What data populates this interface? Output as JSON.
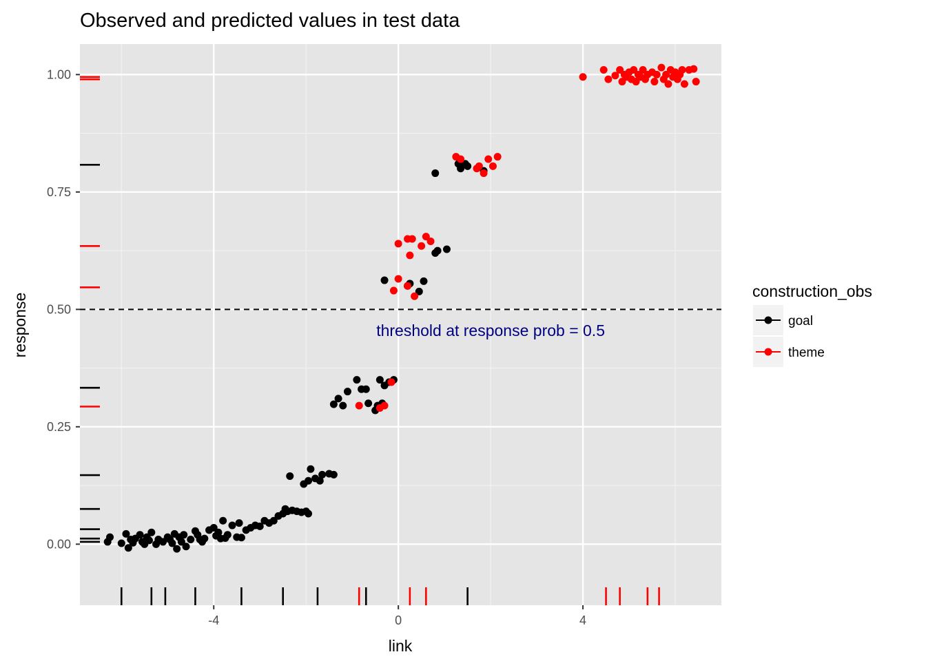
{
  "chart_data": {
    "type": "scatter",
    "title": "Observed and predicted values in test data",
    "xlabel": "link",
    "ylabel": "response",
    "xlim": [
      -6.9,
      7.0
    ],
    "ylim": [
      -0.13,
      1.065
    ],
    "x_ticks": [
      -4,
      0,
      4
    ],
    "x_tick_labels": [
      "-4",
      "0",
      "4"
    ],
    "y_ticks": [
      0,
      0.25,
      0.5,
      0.75,
      1
    ],
    "y_tick_labels": [
      "0.00",
      "0.25",
      "0.50",
      "0.75",
      "1.00"
    ],
    "grid": true,
    "panel_background": "#e5e5e5",
    "threshold": {
      "y": 0.5,
      "style": "dashed",
      "color": "#000000"
    },
    "annotation": {
      "text": "threshold at response prob = 0.5",
      "x": 2.0,
      "y": 0.455,
      "color": "#000080"
    },
    "legend": {
      "title": "construction_obs",
      "position": "right",
      "entries": [
        {
          "label": "goal",
          "color": "#000000"
        },
        {
          "label": "theme",
          "color": "#ff0000"
        }
      ]
    },
    "series": [
      {
        "name": "goal",
        "color": "#000000",
        "points": [
          [
            -6.3,
            0.005
          ],
          [
            -6.25,
            0.015
          ],
          [
            -6.0,
            0.002
          ],
          [
            -5.9,
            0.022
          ],
          [
            -5.85,
            -0.008
          ],
          [
            -5.8,
            0.01
          ],
          [
            -5.75,
            0.003
          ],
          [
            -5.7,
            0.012
          ],
          [
            -5.6,
            0.02
          ],
          [
            -5.55,
            0.005
          ],
          [
            -5.5,
            0.0
          ],
          [
            -5.45,
            0.015
          ],
          [
            -5.4,
            0.008
          ],
          [
            -5.35,
            0.025
          ],
          [
            -5.25,
            0.0
          ],
          [
            -5.2,
            0.01
          ],
          [
            -5.1,
            0.005
          ],
          [
            -5.0,
            0.015
          ],
          [
            -4.95,
            0.01
          ],
          [
            -4.9,
            0.002
          ],
          [
            -4.85,
            0.022
          ],
          [
            -4.8,
            -0.01
          ],
          [
            -4.75,
            0.015
          ],
          [
            -4.7,
            0.005
          ],
          [
            -4.65,
            0.02
          ],
          [
            -4.6,
            -0.005
          ],
          [
            -4.5,
            0.01
          ],
          [
            -4.4,
            0.028
          ],
          [
            -4.35,
            0.02
          ],
          [
            -4.3,
            0.01
          ],
          [
            -4.25,
            0.005
          ],
          [
            -4.2,
            0.012
          ],
          [
            -4.1,
            0.03
          ],
          [
            -4.0,
            0.035
          ],
          [
            -3.95,
            0.018
          ],
          [
            -3.9,
            0.025
          ],
          [
            -3.85,
            0.012
          ],
          [
            -3.8,
            0.05
          ],
          [
            -3.75,
            0.013
          ],
          [
            -3.7,
            0.02
          ],
          [
            -3.6,
            0.04
          ],
          [
            -3.5,
            0.015
          ],
          [
            -3.45,
            0.045
          ],
          [
            -3.4,
            0.014
          ],
          [
            -3.3,
            0.03
          ],
          [
            -3.2,
            0.035
          ],
          [
            -3.1,
            0.04
          ],
          [
            -3.0,
            0.038
          ],
          [
            -2.9,
            0.05
          ],
          [
            -2.8,
            0.045
          ],
          [
            -2.7,
            0.05
          ],
          [
            -2.6,
            0.06
          ],
          [
            -2.5,
            0.065
          ],
          [
            -2.45,
            0.075
          ],
          [
            -2.4,
            0.07
          ],
          [
            -2.3,
            0.072
          ],
          [
            -2.35,
            0.145
          ],
          [
            -2.2,
            0.07
          ],
          [
            -2.1,
            0.068
          ],
          [
            -2.0,
            0.07
          ],
          [
            -1.95,
            0.065
          ],
          [
            -2.05,
            0.128
          ],
          [
            -1.95,
            0.135
          ],
          [
            -1.9,
            0.16
          ],
          [
            -1.8,
            0.14
          ],
          [
            -1.7,
            0.135
          ],
          [
            -1.65,
            0.148
          ],
          [
            -1.5,
            0.15
          ],
          [
            -1.4,
            0.148
          ],
          [
            -1.4,
            0.298
          ],
          [
            -1.3,
            0.31
          ],
          [
            -1.2,
            0.295
          ],
          [
            -1.1,
            0.325
          ],
          [
            -0.9,
            0.35
          ],
          [
            -0.8,
            0.33
          ],
          [
            -0.7,
            0.33
          ],
          [
            -0.65,
            0.3
          ],
          [
            -0.5,
            0.285
          ],
          [
            -0.45,
            0.295
          ],
          [
            -0.35,
            0.3
          ],
          [
            -0.3,
            0.338
          ],
          [
            -0.2,
            0.345
          ],
          [
            -0.1,
            0.35
          ],
          [
            -0.4,
            0.35
          ],
          [
            -0.3,
            0.562
          ],
          [
            0.2,
            0.55
          ],
          [
            0.25,
            0.555
          ],
          [
            0.45,
            0.538
          ],
          [
            0.55,
            0.56
          ],
          [
            0.8,
            0.62
          ],
          [
            0.85,
            0.625
          ],
          [
            1.05,
            0.628
          ],
          [
            0.8,
            0.79
          ],
          [
            1.3,
            0.81
          ],
          [
            1.35,
            0.8
          ],
          [
            1.45,
            0.81
          ],
          [
            1.5,
            0.805
          ],
          [
            1.85,
            0.795
          ]
        ]
      },
      {
        "name": "theme",
        "color": "#ff0000",
        "points": [
          [
            -0.85,
            0.295
          ],
          [
            -0.4,
            0.29
          ],
          [
            -0.3,
            0.295
          ],
          [
            -0.15,
            0.345
          ],
          [
            -0.1,
            0.54
          ],
          [
            0.0,
            0.565
          ],
          [
            0.2,
            0.55
          ],
          [
            0.35,
            0.528
          ],
          [
            0.0,
            0.64
          ],
          [
            0.2,
            0.65
          ],
          [
            0.3,
            0.65
          ],
          [
            0.25,
            0.615
          ],
          [
            0.5,
            0.635
          ],
          [
            0.6,
            0.655
          ],
          [
            0.7,
            0.645
          ],
          [
            1.25,
            0.825
          ],
          [
            1.35,
            0.82
          ],
          [
            1.7,
            0.8
          ],
          [
            1.75,
            0.805
          ],
          [
            1.85,
            0.79
          ],
          [
            1.95,
            0.82
          ],
          [
            2.05,
            0.805
          ],
          [
            2.15,
            0.825
          ],
          [
            4.0,
            0.995
          ],
          [
            4.45,
            1.01
          ],
          [
            4.55,
            0.99
          ],
          [
            4.7,
            0.998
          ],
          [
            4.8,
            1.01
          ],
          [
            4.85,
            0.985
          ],
          [
            4.9,
            1.0
          ],
          [
            4.95,
            0.995
          ],
          [
            5.0,
            1.005
          ],
          [
            5.05,
            0.99
          ],
          [
            5.1,
            1.01
          ],
          [
            5.15,
            0.985
          ],
          [
            5.2,
            1.0
          ],
          [
            5.25,
            0.995
          ],
          [
            5.3,
            1.01
          ],
          [
            5.35,
            0.99
          ],
          [
            5.4,
            1.0
          ],
          [
            5.5,
            1.005
          ],
          [
            5.55,
            0.985
          ],
          [
            5.6,
            1.0
          ],
          [
            5.7,
            1.015
          ],
          [
            5.75,
            0.99
          ],
          [
            5.8,
            1.0
          ],
          [
            5.85,
            0.98
          ],
          [
            5.9,
            1.01
          ],
          [
            5.95,
            0.995
          ],
          [
            6.0,
            1.005
          ],
          [
            6.05,
            0.99
          ],
          [
            6.1,
            1.0
          ],
          [
            6.15,
            1.01
          ],
          [
            6.2,
            0.98
          ],
          [
            6.3,
            1.01
          ],
          [
            6.4,
            1.012
          ],
          [
            6.45,
            0.985
          ]
        ]
      }
    ],
    "rug_x": [
      {
        "x": -6.0,
        "color": "#000000"
      },
      {
        "x": -5.35,
        "color": "#000000"
      },
      {
        "x": -5.05,
        "color": "#000000"
      },
      {
        "x": -4.4,
        "color": "#000000"
      },
      {
        "x": -3.4,
        "color": "#000000"
      },
      {
        "x": -2.5,
        "color": "#000000"
      },
      {
        "x": -1.75,
        "color": "#000000"
      },
      {
        "x": -0.85,
        "color": "#ff0000"
      },
      {
        "x": -0.7,
        "color": "#000000"
      },
      {
        "x": 0.25,
        "color": "#ff0000"
      },
      {
        "x": 0.6,
        "color": "#ff0000"
      },
      {
        "x": 1.5,
        "color": "#000000"
      },
      {
        "x": 4.5,
        "color": "#ff0000"
      },
      {
        "x": 4.8,
        "color": "#ff0000"
      },
      {
        "x": 5.4,
        "color": "#ff0000"
      },
      {
        "x": 5.65,
        "color": "#ff0000"
      }
    ],
    "rug_y": [
      {
        "y": 0.005,
        "color": "#000000"
      },
      {
        "y": 0.012,
        "color": "#000000"
      },
      {
        "y": 0.032,
        "color": "#000000"
      },
      {
        "y": 0.075,
        "color": "#000000"
      },
      {
        "y": 0.147,
        "color": "#000000"
      },
      {
        "y": 0.293,
        "color": "#ff0000"
      },
      {
        "y": 0.333,
        "color": "#000000"
      },
      {
        "y": 0.547,
        "color": "#ff0000"
      },
      {
        "y": 0.635,
        "color": "#ff0000"
      },
      {
        "y": 0.808,
        "color": "#000000"
      },
      {
        "y": 0.99,
        "color": "#ff0000"
      },
      {
        "y": 0.995,
        "color": "#ff0000"
      }
    ]
  }
}
